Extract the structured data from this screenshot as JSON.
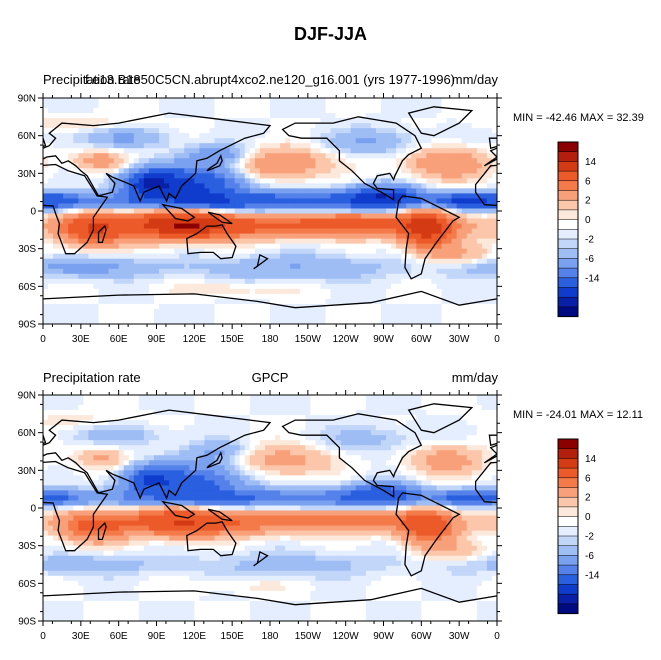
{
  "title": "DJF-JJA",
  "panels": [
    {
      "left_label": "Precipitation rate",
      "center_label": "f.e13.B1850C5CN.abrupt4xco2.ne120_g16.001 (yrs 1977-1996)",
      "units": "mm/day",
      "minmax": "MIN = -42.46 MAX =  32.39"
    },
    {
      "left_label": "Precipitation rate",
      "center_label": "GPCP",
      "units": "mm/day",
      "minmax": "MIN = -24.01 MAX =  12.11"
    }
  ],
  "colorbar": {
    "labels": [
      "14",
      "6",
      "2",
      "0",
      "-2",
      "-6",
      "-14"
    ],
    "colors": [
      "#8b0000",
      "#b41e0c",
      "#d43a14",
      "#ec5a2a",
      "#f47a4a",
      "#f8a07a",
      "#fcc6aa",
      "#fde8dc",
      "#ffffff",
      "#e4eeff",
      "#c2d6fa",
      "#9ebdf5",
      "#7aa0f0",
      "#5581ea",
      "#2a5fe0",
      "#0f3ccc",
      "#0a1fa8",
      "#000a80"
    ]
  },
  "chart_data": [
    {
      "type": "heatmap",
      "title": "f.e13.B1850C5CN.abrupt4xco2.ne120_g16.001 (yrs 1977-1996)",
      "xlabel": "",
      "ylabel": "",
      "x_ticks": [
        "0",
        "30E",
        "60E",
        "90E",
        "120E",
        "150E",
        "180",
        "150W",
        "120W",
        "90W",
        "60W",
        "30W",
        "0"
      ],
      "y_ticks": [
        "90N",
        "60N",
        "30N",
        "0",
        "30S",
        "60S",
        "90S"
      ],
      "xlim": [
        0,
        360
      ],
      "ylim": [
        -90,
        90
      ],
      "min": -42.46,
      "max": 32.39,
      "units": "mm/day",
      "contour_levels": [
        -14,
        -10,
        -6,
        -4,
        -2,
        -1,
        -0.5,
        0,
        0.5,
        1,
        2,
        4,
        6,
        10,
        14
      ]
    },
    {
      "type": "heatmap",
      "title": "GPCP",
      "xlabel": "",
      "ylabel": "",
      "x_ticks": [
        "0",
        "30E",
        "60E",
        "90E",
        "120E",
        "150E",
        "180",
        "150W",
        "120W",
        "90W",
        "60W",
        "30W",
        "0"
      ],
      "y_ticks": [
        "90N",
        "60N",
        "30N",
        "0",
        "30S",
        "60S",
        "90S"
      ],
      "xlim": [
        0,
        360
      ],
      "ylim": [
        -90,
        90
      ],
      "min": -24.01,
      "max": 12.11,
      "units": "mm/day",
      "contour_levels": [
        -14,
        -10,
        -6,
        -4,
        -2,
        -1,
        -0.5,
        0,
        0.5,
        1,
        2,
        4,
        6,
        10,
        14
      ]
    }
  ]
}
